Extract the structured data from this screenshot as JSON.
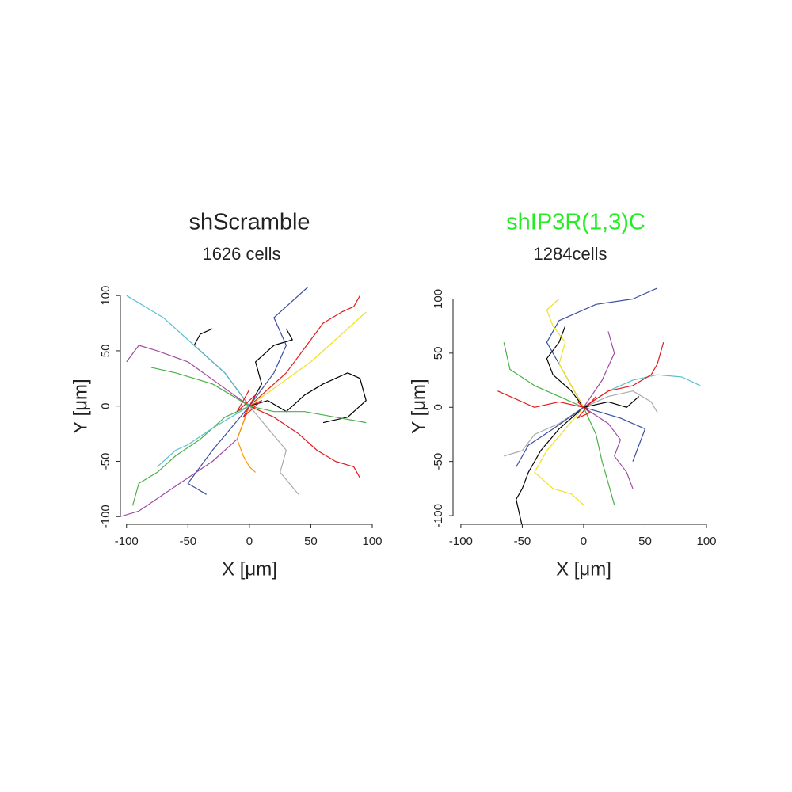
{
  "chart_data": [
    {
      "type": "line",
      "title": "shScramble",
      "subtitle": "1626 cells",
      "title_color": "#222222",
      "xlabel": "X [μm]",
      "ylabel": "Y [μm]",
      "xlim": [
        -105,
        100
      ],
      "ylim": [
        -107,
        108
      ],
      "xticks": [
        -100,
        -50,
        0,
        50,
        100
      ],
      "yticks": [
        -100,
        -50,
        0,
        50,
        100
      ],
      "series": [
        {
          "color": "#000000",
          "x": [
            0,
            -10,
            -20,
            -35,
            -45,
            -40,
            -30
          ],
          "values": [
            0,
            15,
            30,
            45,
            55,
            65,
            70
          ]
        },
        {
          "color": "#000000",
          "x": [
            0,
            15,
            30,
            45,
            60,
            80,
            90,
            95,
            80,
            60
          ],
          "values": [
            0,
            5,
            -5,
            10,
            20,
            30,
            25,
            5,
            -10,
            -15
          ]
        },
        {
          "color": "#000000",
          "x": [
            0,
            10,
            5,
            20,
            35,
            30
          ],
          "values": [
            0,
            20,
            40,
            55,
            60,
            70
          ]
        },
        {
          "color": "#e41a1c",
          "x": [
            0,
            20,
            40,
            55,
            70,
            85,
            90
          ],
          "values": [
            0,
            -10,
            -25,
            -40,
            -50,
            -55,
            -65
          ]
        },
        {
          "color": "#e41a1c",
          "x": [
            0,
            30,
            50,
            60,
            75,
            85,
            90
          ],
          "values": [
            0,
            30,
            60,
            75,
            85,
            90,
            100
          ]
        },
        {
          "color": "#4daf4a",
          "x": [
            0,
            -20,
            -40,
            -60,
            -75,
            -90,
            -95
          ],
          "values": [
            0,
            -10,
            -30,
            -45,
            -60,
            -70,
            -90
          ]
        },
        {
          "color": "#3a4fa0",
          "x": [
            0,
            -15,
            -30,
            -40,
            -50,
            -35
          ],
          "values": [
            0,
            -20,
            -40,
            -55,
            -70,
            -80
          ]
        },
        {
          "color": "#a04ca0",
          "x": [
            0,
            -25,
            -50,
            -75,
            -90,
            -100
          ],
          "values": [
            0,
            20,
            40,
            50,
            55,
            40
          ]
        },
        {
          "color": "#5bbfd0",
          "x": [
            0,
            -20,
            -50,
            -70,
            -85,
            -100
          ],
          "values": [
            0,
            30,
            60,
            80,
            90,
            100
          ]
        },
        {
          "color": "#f0e020",
          "x": [
            0,
            25,
            50,
            65,
            80,
            95
          ],
          "values": [
            0,
            20,
            40,
            55,
            70,
            85
          ]
        },
        {
          "color": "#aaaaaa",
          "x": [
            0,
            15,
            30,
            25,
            40
          ],
          "values": [
            0,
            -20,
            -40,
            -60,
            -80
          ]
        },
        {
          "color": "#a04ca0",
          "x": [
            0,
            -10,
            -30,
            -50,
            -70,
            -90,
            -105
          ],
          "values": [
            0,
            -30,
            -50,
            -65,
            -80,
            -95,
            -100
          ]
        },
        {
          "color": "#4daf4a",
          "x": [
            0,
            20,
            45,
            70,
            95
          ],
          "values": [
            0,
            -5,
            -5,
            -10,
            -15
          ]
        },
        {
          "color": "#3a4fa0",
          "x": [
            0,
            20,
            30,
            20,
            35,
            50
          ],
          "values": [
            0,
            30,
            55,
            80,
            95,
            110
          ]
        },
        {
          "color": "#ff9900",
          "x": [
            0,
            -5,
            -10,
            -5,
            0,
            5
          ],
          "values": [
            0,
            -15,
            -30,
            -45,
            -55,
            -60
          ]
        },
        {
          "color": "#5bbfd0",
          "x": [
            0,
            -30,
            -50,
            -60,
            -75
          ],
          "values": [
            0,
            -20,
            -35,
            -40,
            -55
          ]
        },
        {
          "color": "#4daf4a",
          "x": [
            0,
            -15,
            -30,
            -45,
            -60,
            -80
          ],
          "values": [
            0,
            10,
            20,
            25,
            30,
            35
          ]
        },
        {
          "color": "#e41a1c",
          "x": [
            0,
            10,
            -5,
            5,
            -10,
            0
          ],
          "values": [
            0,
            5,
            -10,
            10,
            -5,
            15
          ]
        }
      ]
    },
    {
      "type": "line",
      "title": "shIP3R(1,3)C",
      "subtitle": "1284cells",
      "title_color": "#22ee22",
      "xlabel": "X [μm]",
      "ylabel": "Y [μm]",
      "xlim": [
        -98,
        100
      ],
      "ylim": [
        -108,
        104
      ],
      "xticks": [
        -100,
        -50,
        0,
        50,
        100
      ],
      "yticks": [
        -100,
        -50,
        0,
        50,
        100
      ],
      "series": [
        {
          "color": "#3a4fa0",
          "x": [
            0,
            -10,
            -20,
            -30,
            -20,
            10,
            40,
            60
          ],
          "values": [
            0,
            20,
            40,
            60,
            80,
            95,
            100,
            110
          ]
        },
        {
          "color": "#5bbfd0",
          "x": [
            0,
            20,
            40,
            60,
            80,
            95
          ],
          "values": [
            0,
            15,
            25,
            30,
            28,
            20
          ]
        },
        {
          "color": "#000000",
          "x": [
            0,
            -20,
            -35,
            -45,
            -50,
            -55,
            -50
          ],
          "values": [
            0,
            -20,
            -40,
            -60,
            -75,
            -85,
            -110
          ]
        },
        {
          "color": "#000000",
          "x": [
            0,
            -10,
            -25,
            -30,
            -20,
            -15
          ],
          "values": [
            0,
            15,
            30,
            45,
            60,
            75
          ]
        },
        {
          "color": "#f0e020",
          "x": [
            0,
            -10,
            -20,
            -15,
            -25,
            -30,
            -20
          ],
          "values": [
            0,
            20,
            40,
            60,
            75,
            90,
            100
          ]
        },
        {
          "color": "#f0e020",
          "x": [
            0,
            -15,
            -30,
            -40,
            -25,
            -10,
            0
          ],
          "values": [
            0,
            -20,
            -40,
            -60,
            -75,
            -80,
            -90
          ]
        },
        {
          "color": "#4daf4a",
          "x": [
            0,
            -20,
            -40,
            -60,
            -65
          ],
          "values": [
            0,
            10,
            20,
            35,
            60
          ]
        },
        {
          "color": "#e41a1c",
          "x": [
            0,
            20,
            40,
            55,
            60,
            65
          ],
          "values": [
            0,
            15,
            20,
            30,
            40,
            60
          ]
        },
        {
          "color": "#e41a1c",
          "x": [
            0,
            -20,
            -40,
            -60,
            -70
          ],
          "values": [
            0,
            5,
            0,
            10,
            15
          ]
        },
        {
          "color": "#a04ca0",
          "x": [
            0,
            20,
            30,
            25,
            35,
            40
          ],
          "values": [
            0,
            -15,
            -30,
            -45,
            -60,
            -75
          ]
        },
        {
          "color": "#3a4fa0",
          "x": [
            0,
            30,
            50,
            45,
            40
          ],
          "values": [
            0,
            -10,
            -20,
            -35,
            -50
          ]
        },
        {
          "color": "#aaaaaa",
          "x": [
            0,
            20,
            40,
            55,
            60
          ],
          "values": [
            0,
            10,
            15,
            5,
            -5
          ]
        },
        {
          "color": "#4daf4a",
          "x": [
            0,
            10,
            15,
            20,
            25
          ],
          "values": [
            0,
            -25,
            -50,
            -70,
            -90
          ]
        },
        {
          "color": "#aaaaaa",
          "x": [
            0,
            -20,
            -40,
            -50,
            -65
          ],
          "values": [
            0,
            -15,
            -25,
            -40,
            -45
          ]
        },
        {
          "color": "#e41a1c",
          "x": [
            0,
            -5,
            5,
            -5,
            10,
            0
          ],
          "values": [
            0,
            5,
            -5,
            -10,
            10,
            -3
          ]
        },
        {
          "color": "#a04ca0",
          "x": [
            0,
            15,
            25,
            20
          ],
          "values": [
            0,
            25,
            50,
            70
          ]
        },
        {
          "color": "#3a4fa0",
          "x": [
            0,
            -25,
            -45,
            -55
          ],
          "values": [
            0,
            -20,
            -35,
            -55
          ]
        },
        {
          "color": "#000000",
          "x": [
            0,
            20,
            35,
            45
          ],
          "values": [
            0,
            5,
            0,
            10
          ]
        }
      ]
    }
  ]
}
